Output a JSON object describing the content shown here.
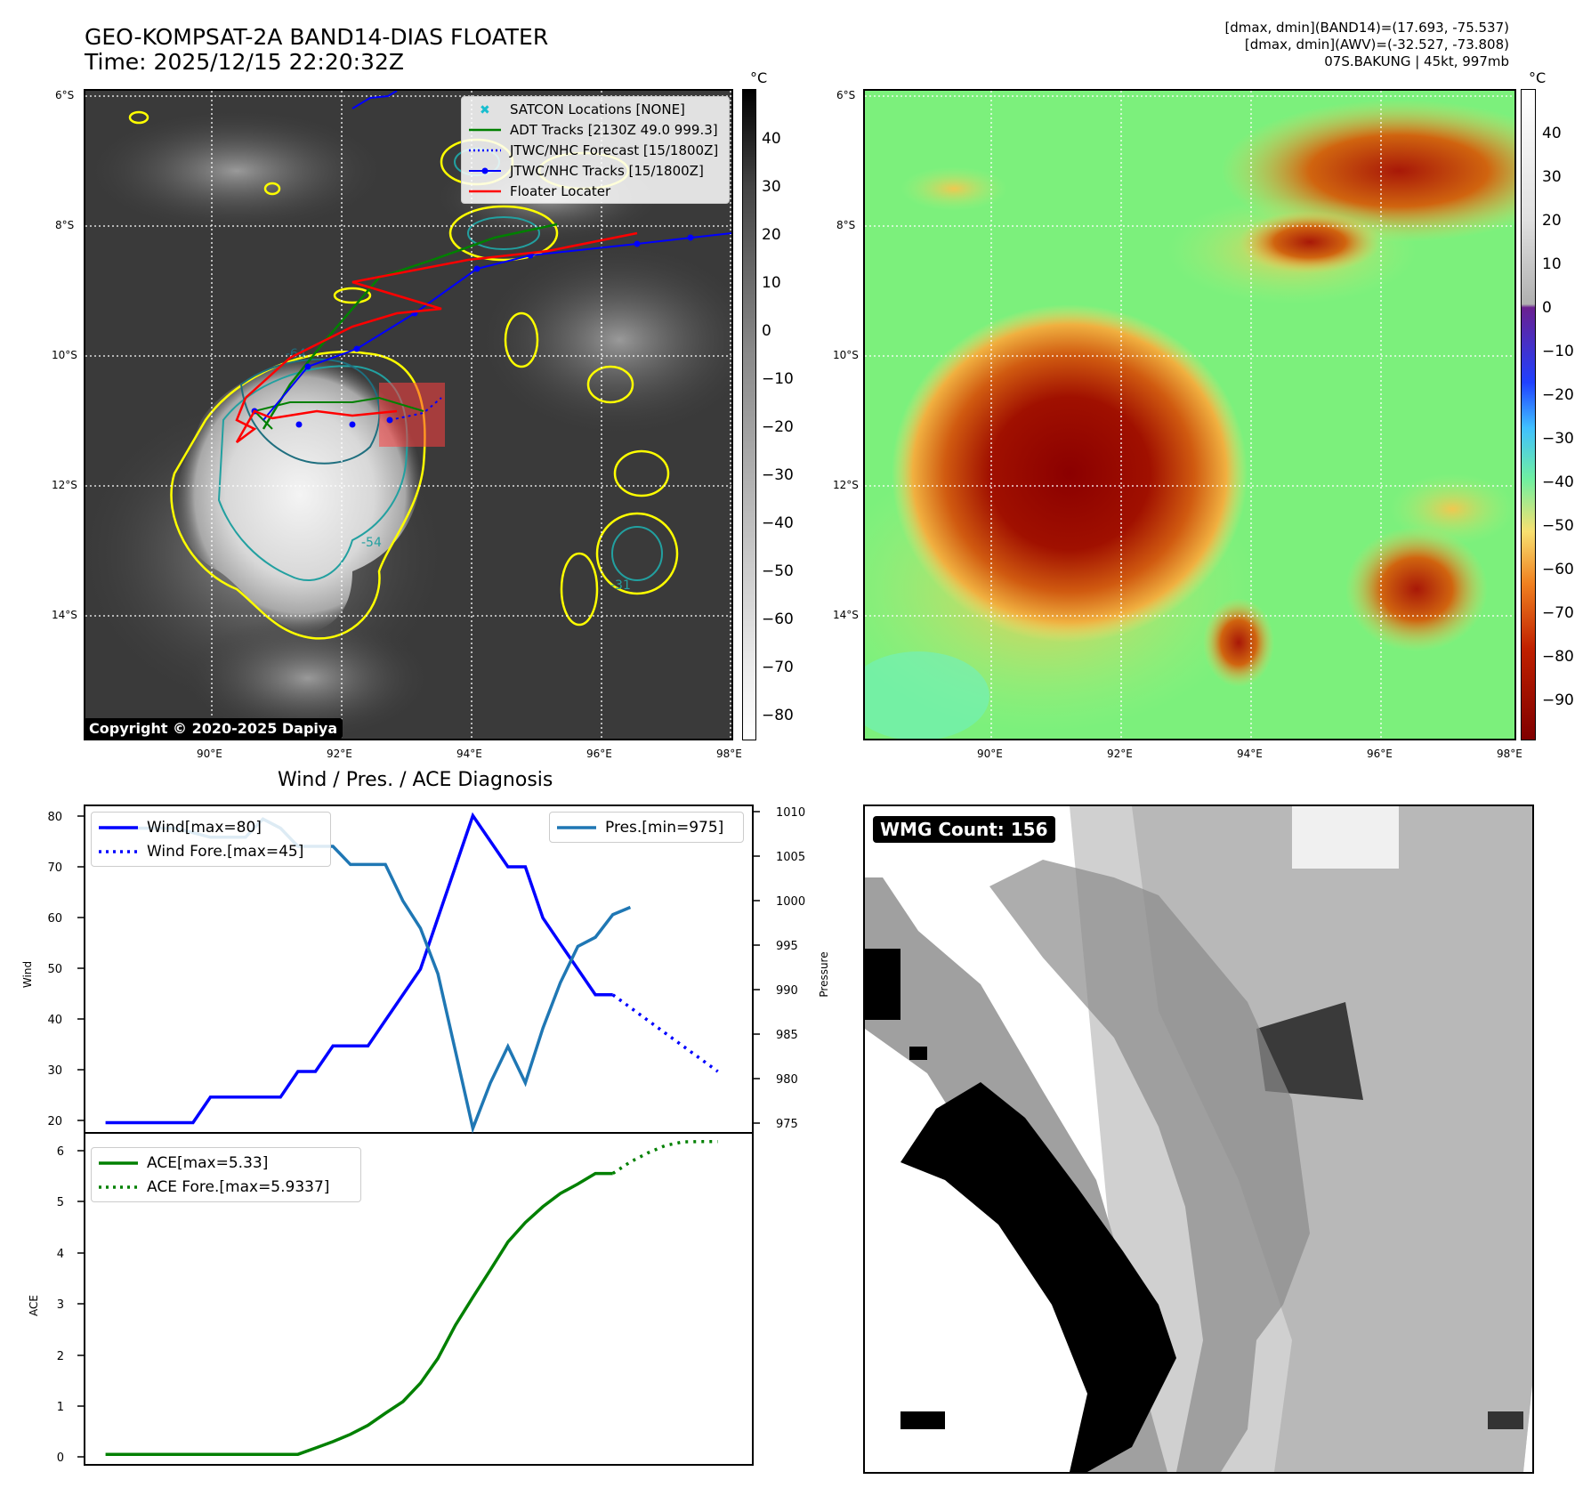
{
  "header": {
    "title_line1": "GEO-KOMPSAT-2A BAND14-DIAS FLOATER",
    "title_line2": "Time: 2025/12/15 22:20:32Z",
    "info_line1": "[dmax, dmin](BAND14)=(17.693, -75.537)",
    "info_line2": "[dmax, dmin](AWV)=(-32.527, -73.808)",
    "info_line3": "07S.BAKUNG | 45kt, 997mb"
  },
  "map": {
    "lat_labels": [
      "6°S",
      "8°S",
      "10°S",
      "12°S",
      "14°S"
    ],
    "lon_labels": [
      "90°E",
      "92°E",
      "94°E",
      "96°E",
      "98°E"
    ],
    "copyright": "Copyright © 2020-2025 Dapiya",
    "contour_labels": [
      "-64",
      "-54",
      "-31"
    ],
    "legend": [
      {
        "label": "SATCON Locations [NONE]",
        "color": "#17becf",
        "style": "x"
      },
      {
        "label": "ADT Tracks [2130Z 49.0 999.3]",
        "color": "#008000",
        "style": "solid"
      },
      {
        "label": "JTWC/NHC Forecast [15/1800Z]",
        "color": "#0000ff",
        "style": "dotted"
      },
      {
        "label": "JTWC/NHC Tracks [15/1800Z]",
        "color": "#0000ff",
        "style": "marker"
      },
      {
        "label": "Floater Locater",
        "color": "#ff0000",
        "style": "solid"
      }
    ]
  },
  "colorbar_left": {
    "unit": "°C",
    "ticks": [
      "40",
      "30",
      "20",
      "10",
      "0",
      "−10",
      "−20",
      "−30",
      "−40",
      "−50",
      "−60",
      "−70",
      "−80"
    ]
  },
  "colorbar_right": {
    "unit": "°C",
    "ticks": [
      "40",
      "30",
      "20",
      "10",
      "0",
      "−10",
      "−20",
      "−30",
      "−40",
      "−50",
      "−60",
      "−70",
      "−80",
      "−90"
    ]
  },
  "diagnosis": {
    "title": "Wind / Pres. / ACE Diagnosis",
    "wind_ylabel": "Wind",
    "pres_ylabel": "Pressure",
    "ace_ylabel": "ACE",
    "wind_ticks": [
      "80",
      "70",
      "60",
      "50",
      "40",
      "30",
      "20"
    ],
    "pres_ticks": [
      "1010",
      "1005",
      "1000",
      "995",
      "990",
      "985",
      "980",
      "975"
    ],
    "ace_ticks": [
      "6",
      "5",
      "4",
      "3",
      "2",
      "1",
      "0"
    ],
    "legend_wind": "Wind[max=80]",
    "legend_wind_fore": "Wind Fore.[max=45]",
    "legend_pres": "Pres.[min=975]",
    "legend_ace": "ACE[max=5.33]",
    "legend_ace_fore": "ACE Fore.[max=5.9337]"
  },
  "wmg": {
    "label": "WMG Count: 156"
  },
  "colors": {
    "wind": "#0000ff",
    "pres": "#1f77b4",
    "ace": "#008000",
    "track_red": "#ff0000"
  },
  "chart_data": [
    {
      "type": "line",
      "title": "Wind / Pres. / ACE Diagnosis",
      "ylabel": "Wind",
      "ylim": [
        18,
        82
      ],
      "series": [
        {
          "name": "Wind[max=80]",
          "x": [
            0,
            1,
            2,
            3,
            4,
            5,
            6,
            7,
            8,
            9,
            10,
            11,
            12,
            13,
            14,
            15,
            16,
            17,
            18,
            19,
            20,
            21,
            22,
            23,
            24,
            25,
            26,
            27,
            28,
            29
          ],
          "values": [
            20,
            20,
            20,
            20,
            20,
            20,
            25,
            25,
            25,
            25,
            25,
            30,
            30,
            35,
            35,
            35,
            40,
            45,
            50,
            60,
            70,
            80,
            75,
            70,
            70,
            60,
            55,
            50,
            45,
            45
          ]
        },
        {
          "name": "Wind Fore.[max=45]",
          "x": [
            29,
            30,
            31,
            32,
            33,
            34,
            35
          ],
          "values": [
            45,
            42.5,
            40,
            37.5,
            35,
            32.5,
            30
          ]
        }
      ]
    },
    {
      "type": "line",
      "ylabel": "Pressure",
      "ylim": [
        974.5,
        1010.5
      ],
      "series": [
        {
          "name": "Pres.[min=975]",
          "x": [
            0,
            1,
            2,
            3,
            4,
            5,
            6,
            7,
            8,
            9,
            10,
            11,
            12,
            13,
            14,
            15,
            16,
            17,
            18,
            19,
            20,
            21,
            22,
            23,
            24,
            25,
            26,
            27,
            28,
            29,
            30
          ],
          "values": [
            1008,
            1008,
            1008,
            1008,
            1008,
            1007.5,
            1007,
            1007,
            1007,
            1009,
            1008,
            1006,
            1006,
            1006,
            1004,
            1004,
            1004,
            1000,
            997,
            992,
            983.5,
            975,
            980,
            984,
            980,
            986,
            991,
            995,
            996,
            998.5,
            999.3
          ]
        }
      ]
    },
    {
      "type": "line",
      "ylabel": "ACE",
      "ylim": [
        -0.2,
        6.1
      ],
      "series": [
        {
          "name": "ACE[max=5.33]",
          "x": [
            0,
            1,
            2,
            3,
            4,
            5,
            6,
            7,
            8,
            9,
            10,
            11,
            12,
            13,
            14,
            15,
            16,
            17,
            18,
            19,
            20,
            21,
            22,
            23,
            24,
            25,
            26,
            27,
            28,
            29
          ],
          "values": [
            0,
            0,
            0,
            0,
            0,
            0,
            0,
            0,
            0,
            0,
            0,
            0,
            0.12,
            0.24,
            0.38,
            0.55,
            0.78,
            1.0,
            1.35,
            1.82,
            2.45,
            2.98,
            3.5,
            4.03,
            4.4,
            4.7,
            4.95,
            5.13,
            5.33,
            5.33
          ]
        },
        {
          "name": "ACE Fore.[max=5.9337]",
          "x": [
            29,
            30,
            31,
            32,
            33,
            34,
            35
          ],
          "values": [
            5.33,
            5.55,
            5.72,
            5.86,
            5.93,
            5.9337,
            5.9337
          ]
        }
      ]
    }
  ]
}
